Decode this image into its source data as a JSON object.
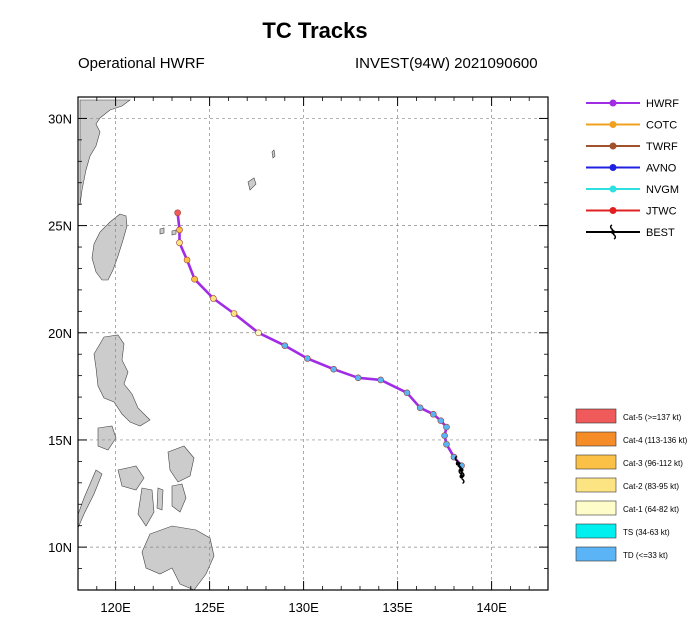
{
  "header": {
    "title": "TC Tracks",
    "subtitle_left": "Operational HWRF",
    "subtitle_right": "INVEST(94W) 2021090600"
  },
  "chart_data": {
    "type": "line",
    "title": "TC Tracks",
    "map": true,
    "xlim": [
      118,
      143
    ],
    "ylim": [
      8,
      31
    ],
    "x_ticks": [
      {
        "value": 120,
        "label": "120E"
      },
      {
        "value": 125,
        "label": "125E"
      },
      {
        "value": 130,
        "label": "130E"
      },
      {
        "value": 135,
        "label": "135E"
      },
      {
        "value": 140,
        "label": "140E"
      }
    ],
    "y_ticks": [
      {
        "value": 10,
        "label": "10N"
      },
      {
        "value": 15,
        "label": "15N"
      },
      {
        "value": 20,
        "label": "20N"
      },
      {
        "value": 25,
        "label": "25N"
      },
      {
        "value": 30,
        "label": "30N"
      }
    ],
    "grid": true,
    "legend_position": "right",
    "series": [
      {
        "name": "HWRF",
        "color": "#a02ce6",
        "marker": "circle",
        "points": [
          {
            "lon": 138.4,
            "lat": 13.8,
            "cat": "TD"
          },
          {
            "lon": 138.0,
            "lat": 14.2,
            "cat": "TD"
          },
          {
            "lon": 137.6,
            "lat": 14.8,
            "cat": "TD"
          },
          {
            "lon": 137.5,
            "lat": 15.2,
            "cat": "TD"
          },
          {
            "lon": 137.6,
            "lat": 15.6,
            "cat": "TD"
          },
          {
            "lon": 137.3,
            "lat": 15.9,
            "cat": "TD"
          },
          {
            "lon": 136.9,
            "lat": 16.2,
            "cat": "TD"
          },
          {
            "lon": 136.2,
            "lat": 16.5,
            "cat": "TD"
          },
          {
            "lon": 135.5,
            "lat": 17.2,
            "cat": "TD"
          },
          {
            "lon": 134.1,
            "lat": 17.8,
            "cat": "TD"
          },
          {
            "lon": 132.9,
            "lat": 17.9,
            "cat": "TD"
          },
          {
            "lon": 131.6,
            "lat": 18.3,
            "cat": "TD"
          },
          {
            "lon": 130.2,
            "lat": 18.8,
            "cat": "TD"
          },
          {
            "lon": 129.0,
            "lat": 19.4,
            "cat": "TD"
          },
          {
            "lon": 127.6,
            "lat": 20.0,
            "cat": "Cat-1"
          },
          {
            "lon": 126.3,
            "lat": 20.9,
            "cat": "Cat-2"
          },
          {
            "lon": 125.2,
            "lat": 21.6,
            "cat": "Cat-2"
          },
          {
            "lon": 124.2,
            "lat": 22.5,
            "cat": "Cat-3"
          },
          {
            "lon": 123.8,
            "lat": 23.4,
            "cat": "Cat-3"
          },
          {
            "lon": 123.4,
            "lat": 24.2,
            "cat": "Cat-2"
          },
          {
            "lon": 123.4,
            "lat": 24.8,
            "cat": "Cat-3"
          },
          {
            "lon": 123.3,
            "lat": 25.6,
            "cat": "Cat-5"
          }
        ]
      },
      {
        "name": "BEST",
        "color": "#000000",
        "marker": "typhoon-symbol",
        "points": [
          {
            "lon": 138.4,
            "lat": 13.3
          },
          {
            "lon": 138.4,
            "lat": 13.6
          },
          {
            "lon": 138.2,
            "lat": 13.9
          }
        ]
      }
    ],
    "legend": [
      {
        "name": "HWRF",
        "color": "#a02ce6",
        "marker": "circle"
      },
      {
        "name": "COTC",
        "color": "#f0a020",
        "marker": "circle"
      },
      {
        "name": "TWRF",
        "color": "#a0522d",
        "marker": "circle"
      },
      {
        "name": "AVNO",
        "color": "#2020e0",
        "marker": "circle"
      },
      {
        "name": "NVGM",
        "color": "#30e0e0",
        "marker": "circle"
      },
      {
        "name": "JTWC",
        "color": "#e02020",
        "marker": "circle"
      },
      {
        "name": "BEST",
        "color": "#000000",
        "marker": "typhoon-symbol"
      }
    ],
    "intensity_legend": [
      {
        "key": "Cat-5",
        "label": "Cat-5 (>=137 kt)",
        "color": "#f05a5a"
      },
      {
        "key": "Cat-4",
        "label": "Cat-4 (113-136 kt)",
        "color": "#f58c28"
      },
      {
        "key": "Cat-3",
        "label": "Cat-3 (96-112 kt)",
        "color": "#fbc046"
      },
      {
        "key": "Cat-2",
        "label": "Cat-2 (83-95 kt)",
        "color": "#fde482"
      },
      {
        "key": "Cat-1",
        "label": "Cat-1 (64-82 kt)",
        "color": "#fefcc8"
      },
      {
        "key": "TS",
        "label": "TS (34-63 kt)",
        "color": "#00f0f0"
      },
      {
        "key": "TD",
        "label": "TD (<=33 kt)",
        "color": "#5ab4f5"
      }
    ]
  }
}
